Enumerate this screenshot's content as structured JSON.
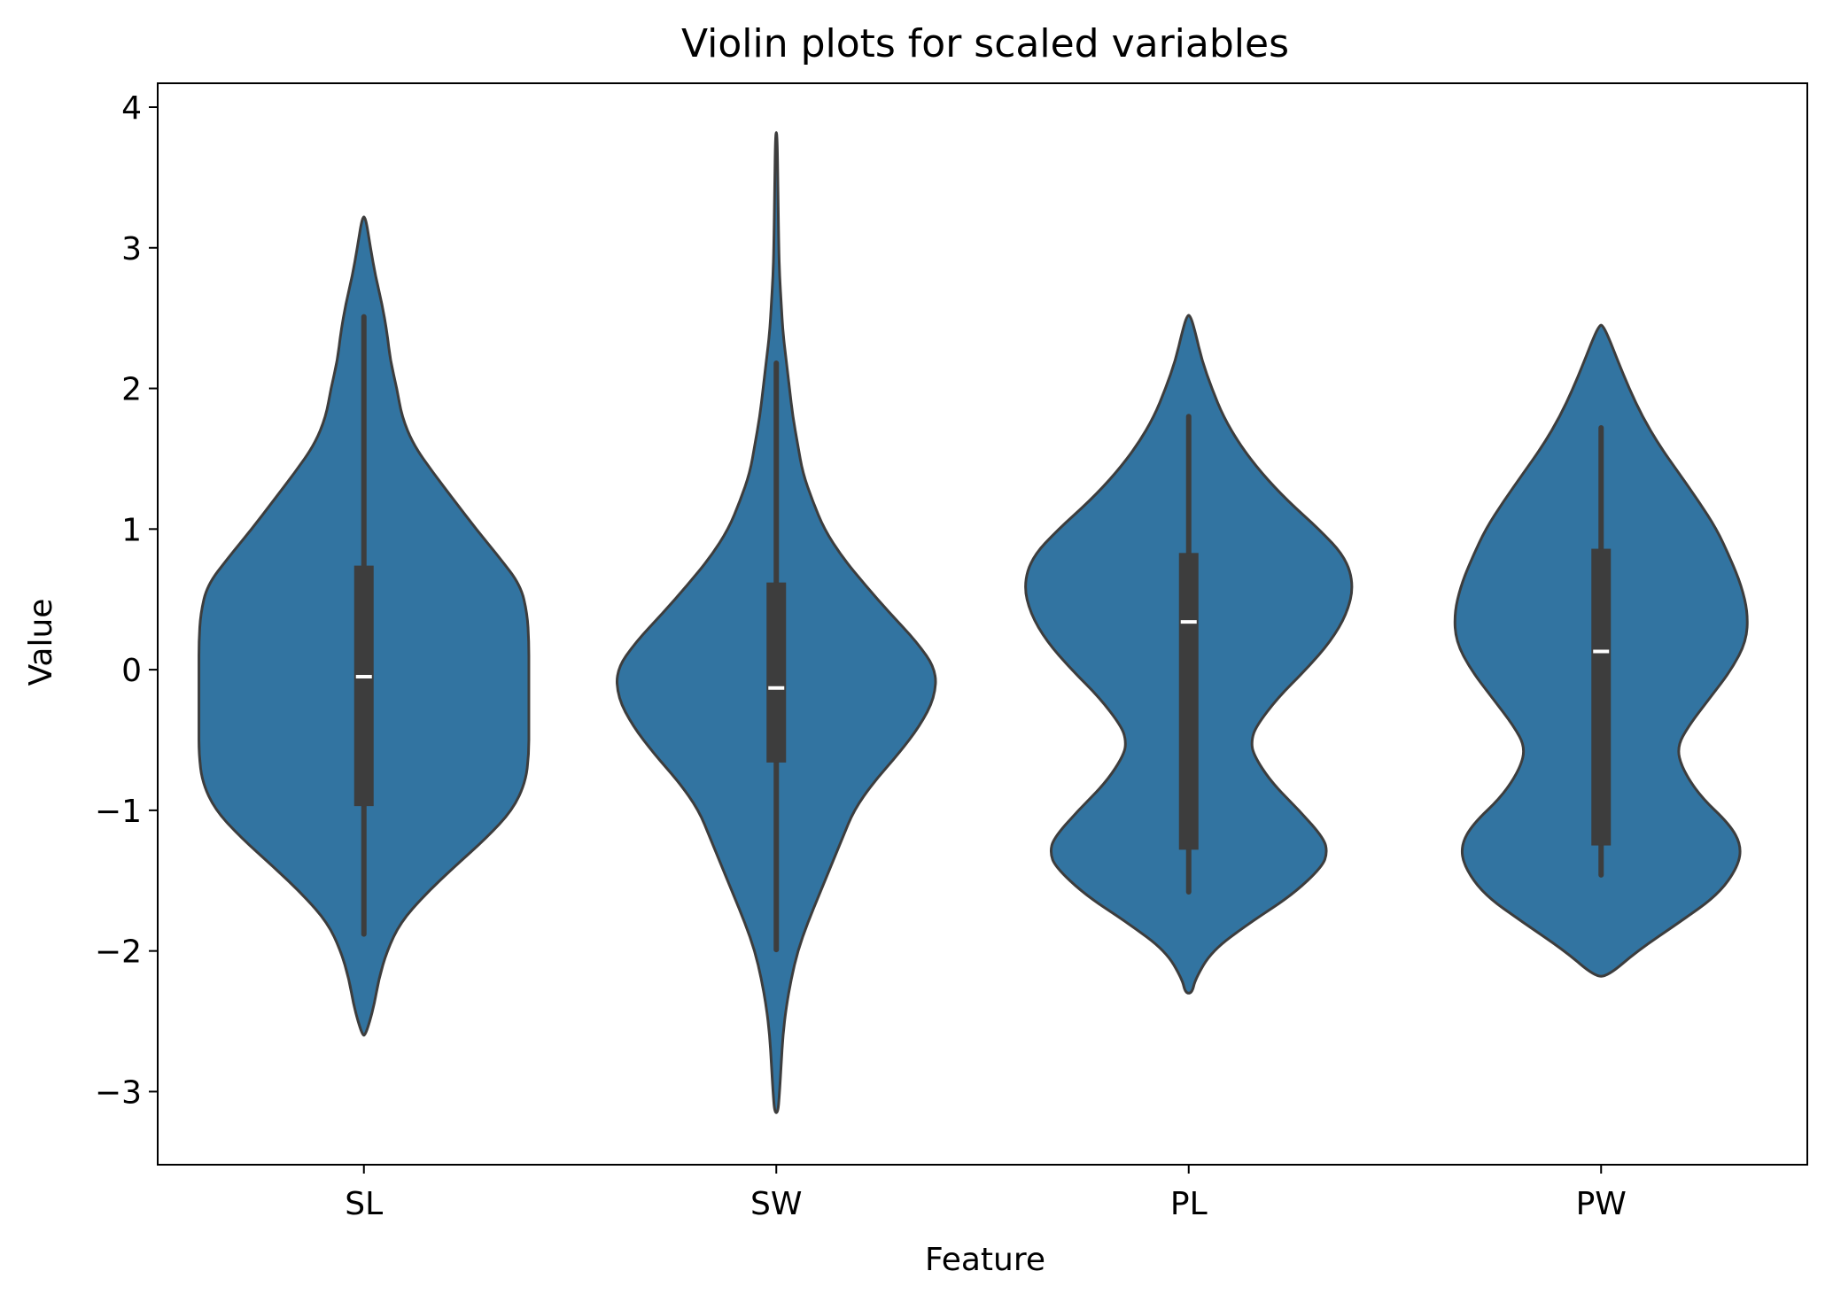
{
  "chart_data": {
    "type": "violin",
    "title": "Violin plots for scaled variables",
    "xlabel": "Feature",
    "ylabel": "Value",
    "ylim": [
      -3.52,
      4.17
    ],
    "yticks": [
      {
        "value": -3,
        "label": "−3"
      },
      {
        "value": -2,
        "label": "−2"
      },
      {
        "value": -1,
        "label": "−1"
      },
      {
        "value": 0,
        "label": "0"
      },
      {
        "value": 1,
        "label": "1"
      },
      {
        "value": 2,
        "label": "2"
      },
      {
        "value": 3,
        "label": "3"
      },
      {
        "value": 4,
        "label": "4"
      }
    ],
    "grid": false,
    "fill_color": "#3274a1",
    "edge_color": "#3d3d3d",
    "median_color": "#ffffff",
    "categories": [
      "SL",
      "SW",
      "PL",
      "PW"
    ],
    "series": [
      {
        "category": "SL",
        "whisker_low": -1.88,
        "q1": -0.97,
        "median": -0.05,
        "q3": 0.74,
        "whisker_high": 2.51,
        "density": [
          [
            -2.6,
            0.01
          ],
          [
            -2.4,
            0.06
          ],
          [
            -2.2,
            0.09
          ],
          [
            -2.0,
            0.14
          ],
          [
            -1.8,
            0.22
          ],
          [
            -1.6,
            0.37
          ],
          [
            -1.4,
            0.55
          ],
          [
            -1.2,
            0.74
          ],
          [
            -1.0,
            0.9
          ],
          [
            -0.8,
            0.98
          ],
          [
            -0.6,
            1.0
          ],
          [
            -0.4,
            1.0
          ],
          [
            -0.2,
            1.0
          ],
          [
            0.0,
            1.0
          ],
          [
            0.2,
            1.0
          ],
          [
            0.4,
            0.99
          ],
          [
            0.6,
            0.95
          ],
          [
            0.8,
            0.82
          ],
          [
            1.0,
            0.68
          ],
          [
            1.2,
            0.55
          ],
          [
            1.4,
            0.42
          ],
          [
            1.6,
            0.3
          ],
          [
            1.8,
            0.23
          ],
          [
            2.0,
            0.2
          ],
          [
            2.2,
            0.16
          ],
          [
            2.4,
            0.14
          ],
          [
            2.6,
            0.11
          ],
          [
            2.8,
            0.07
          ],
          [
            3.0,
            0.04
          ],
          [
            3.22,
            0.01
          ]
        ]
      },
      {
        "category": "SW",
        "whisker_low": -1.99,
        "q1": -0.66,
        "median": -0.13,
        "q3": 0.62,
        "whisker_high": 2.18,
        "density": [
          [
            -3.15,
            0.01
          ],
          [
            -3.0,
            0.02
          ],
          [
            -2.8,
            0.03
          ],
          [
            -2.6,
            0.04
          ],
          [
            -2.4,
            0.06
          ],
          [
            -2.2,
            0.09
          ],
          [
            -2.0,
            0.13
          ],
          [
            -1.8,
            0.19
          ],
          [
            -1.6,
            0.26
          ],
          [
            -1.4,
            0.33
          ],
          [
            -1.2,
            0.4
          ],
          [
            -1.0,
            0.47
          ],
          [
            -0.8,
            0.59
          ],
          [
            -0.6,
            0.74
          ],
          [
            -0.4,
            0.87
          ],
          [
            -0.2,
            0.96
          ],
          [
            0.0,
            0.97
          ],
          [
            0.2,
            0.85
          ],
          [
            0.4,
            0.69
          ],
          [
            0.6,
            0.54
          ],
          [
            0.8,
            0.4
          ],
          [
            1.0,
            0.29
          ],
          [
            1.2,
            0.22
          ],
          [
            1.4,
            0.16
          ],
          [
            1.6,
            0.13
          ],
          [
            1.8,
            0.1
          ],
          [
            2.0,
            0.08
          ],
          [
            2.2,
            0.06
          ],
          [
            2.4,
            0.04
          ],
          [
            2.6,
            0.03
          ],
          [
            2.8,
            0.02
          ],
          [
            3.0,
            0.015
          ],
          [
            3.4,
            0.01
          ],
          [
            3.82,
            0.005
          ]
        ]
      },
      {
        "category": "PL",
        "whisker_low": -1.58,
        "q1": -1.28,
        "median": 0.34,
        "q3": 0.83,
        "whisker_high": 1.8,
        "density": [
          [
            -2.3,
            0.02
          ],
          [
            -2.2,
            0.04
          ],
          [
            -2.0,
            0.14
          ],
          [
            -1.8,
            0.37
          ],
          [
            -1.6,
            0.63
          ],
          [
            -1.4,
            0.81
          ],
          [
            -1.3,
            0.84
          ],
          [
            -1.2,
            0.82
          ],
          [
            -1.0,
            0.67
          ],
          [
            -0.8,
            0.5
          ],
          [
            -0.6,
            0.39
          ],
          [
            -0.5,
            0.38
          ],
          [
            -0.4,
            0.41
          ],
          [
            -0.2,
            0.54
          ],
          [
            0.0,
            0.71
          ],
          [
            0.2,
            0.86
          ],
          [
            0.4,
            0.96
          ],
          [
            0.6,
            1.0
          ],
          [
            0.8,
            0.95
          ],
          [
            1.0,
            0.79
          ],
          [
            1.2,
            0.6
          ],
          [
            1.4,
            0.44
          ],
          [
            1.6,
            0.31
          ],
          [
            1.8,
            0.21
          ],
          [
            2.0,
            0.14
          ],
          [
            2.2,
            0.08
          ],
          [
            2.4,
            0.04
          ],
          [
            2.52,
            0.01
          ]
        ]
      },
      {
        "category": "PW",
        "whisker_low": -1.46,
        "q1": -1.25,
        "median": 0.13,
        "q3": 0.86,
        "whisker_high": 1.72,
        "density": [
          [
            -2.18,
            0.04
          ],
          [
            -2.0,
            0.22
          ],
          [
            -1.8,
            0.47
          ],
          [
            -1.6,
            0.71
          ],
          [
            -1.4,
            0.83
          ],
          [
            -1.25,
            0.85
          ],
          [
            -1.1,
            0.78
          ],
          [
            -0.9,
            0.6
          ],
          [
            -0.7,
            0.49
          ],
          [
            -0.55,
            0.46
          ],
          [
            -0.4,
            0.53
          ],
          [
            -0.2,
            0.66
          ],
          [
            0.0,
            0.79
          ],
          [
            0.2,
            0.88
          ],
          [
            0.4,
            0.89
          ],
          [
            0.6,
            0.85
          ],
          [
            0.8,
            0.78
          ],
          [
            1.0,
            0.7
          ],
          [
            1.2,
            0.59
          ],
          [
            1.4,
            0.47
          ],
          [
            1.6,
            0.35
          ],
          [
            1.8,
            0.25
          ],
          [
            2.0,
            0.17
          ],
          [
            2.2,
            0.1
          ],
          [
            2.35,
            0.05
          ],
          [
            2.45,
            0.01
          ]
        ]
      }
    ]
  }
}
